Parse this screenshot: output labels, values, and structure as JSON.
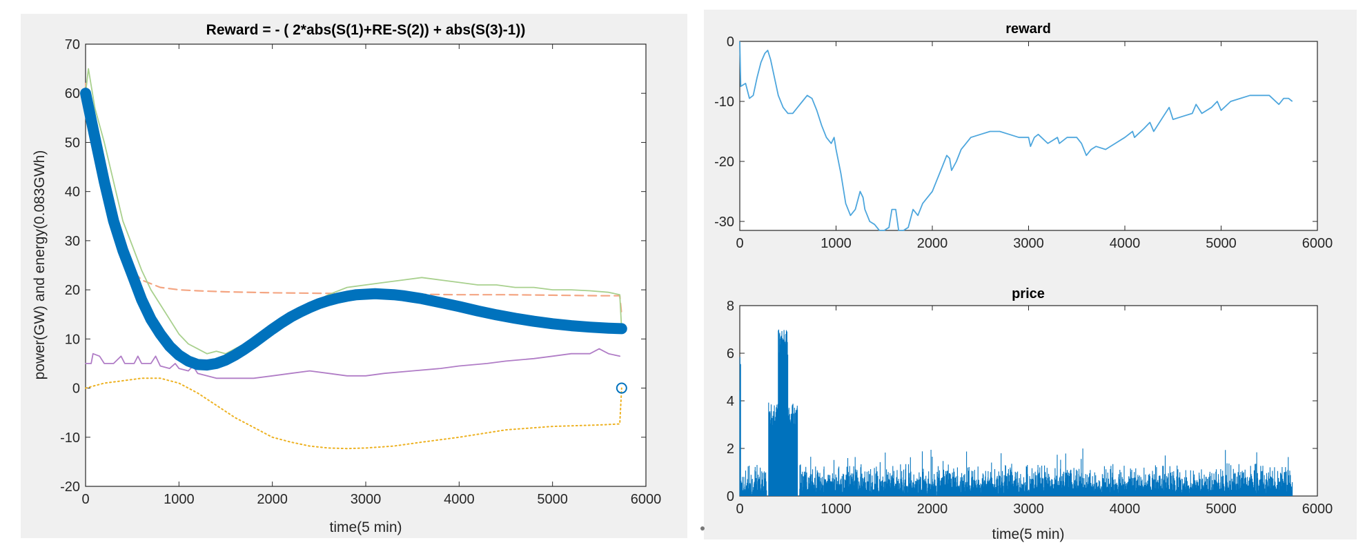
{
  "colors": {
    "background": "#f0f0f0",
    "axes": "#262626",
    "series_blue": "#0072BD",
    "series_blue_light": "#4DA6DD",
    "series_orange": "#F4A582",
    "series_yellow": "#EDB120",
    "series_purple": "#B07CC6",
    "series_green": "#A8D08D"
  },
  "chart_data": [
    {
      "type": "line",
      "title": "Reward = - ( 2*abs(S(1)+RE-S(2)) + abs(S(3)-1))",
      "xlabel": "time(5 min)",
      "ylabel": "power(GW) and energy(0.083GWh)",
      "xlim": [
        0,
        6000
      ],
      "ylim": [
        -20,
        70
      ],
      "xticks": [
        0,
        1000,
        2000,
        3000,
        4000,
        5000,
        6000
      ],
      "yticks": [
        -20,
        -10,
        0,
        10,
        20,
        30,
        40,
        50,
        60,
        70
      ],
      "grid": false,
      "series": [
        {
          "style": "dashed",
          "color": "#F4A582",
          "x": [
            0,
            100,
            200,
            300,
            400,
            500,
            600,
            800,
            1000,
            1200,
            1500,
            2000,
            2500,
            3000,
            3500,
            4000,
            4500,
            5000,
            5500,
            5720,
            5740
          ],
          "y": [
            62,
            50,
            40,
            32,
            27,
            24,
            22,
            20.5,
            20,
            19.8,
            19.6,
            19.4,
            19.3,
            19.2,
            19.1,
            19,
            19,
            18.9,
            18.8,
            18.8,
            15
          ]
        },
        {
          "style": "dotted",
          "color": "#EDB120",
          "x": [
            0,
            200,
            400,
            600,
            800,
            1000,
            1200,
            1400,
            1600,
            1800,
            2000,
            2200,
            2400,
            2600,
            2800,
            3000,
            3300,
            3600,
            4000,
            4500,
            5000,
            5500,
            5720,
            5740
          ],
          "y": [
            0,
            1,
            1.5,
            2,
            2,
            1,
            -1,
            -3.5,
            -6,
            -8,
            -10,
            -11,
            -11.8,
            -12.2,
            -12.3,
            -12.2,
            -11.8,
            -11,
            -10,
            -8.5,
            -7.8,
            -7.5,
            -7.3,
            0
          ]
        },
        {
          "style": "solid",
          "color": "#B07CC6",
          "x": [
            0,
            60,
            80,
            150,
            200,
            300,
            380,
            420,
            520,
            560,
            600,
            700,
            750,
            800,
            900,
            960,
            1000,
            1100,
            1150,
            1200,
            1300,
            1400,
            1600,
            1800,
            2000,
            2200,
            2400,
            2600,
            2800,
            3000,
            3200,
            3500,
            3800,
            4000,
            4300,
            4500,
            4800,
            5000,
            5200,
            5400,
            5500,
            5600,
            5720
          ],
          "y": [
            5,
            5,
            7,
            6.5,
            5,
            5,
            6.5,
            5,
            5,
            6.5,
            5,
            5,
            6.5,
            4.5,
            4,
            5,
            4,
            3.5,
            4.5,
            3,
            2.5,
            2,
            2,
            2,
            2.5,
            3,
            3.5,
            3,
            2.5,
            2.5,
            3,
            3.5,
            4,
            4.5,
            5,
            5.5,
            6,
            6.5,
            7,
            7,
            8,
            7,
            6.5
          ]
        },
        {
          "style": "solid",
          "color": "#A8D08D",
          "x": [
            0,
            30,
            100,
            200,
            300,
            400,
            500,
            600,
            700,
            800,
            900,
            1000,
            1100,
            1200,
            1300,
            1400,
            1500,
            1600,
            1700,
            1800,
            1900,
            2000,
            2100,
            2200,
            2300,
            2400,
            2600,
            2800,
            3000,
            3200,
            3400,
            3600,
            3800,
            4000,
            4200,
            4400,
            4600,
            4800,
            5000,
            5200,
            5400,
            5600,
            5720,
            5740
          ],
          "y": [
            60,
            65,
            57,
            50,
            42,
            34,
            29,
            24,
            20,
            17,
            14,
            11,
            9,
            8,
            7,
            7.5,
            7,
            8,
            9,
            10,
            11,
            12,
            13,
            14,
            15,
            17,
            19,
            20.5,
            21,
            21.5,
            22,
            22.5,
            22,
            21.5,
            21,
            21,
            20.5,
            20.5,
            20,
            20,
            19.8,
            19.5,
            19,
            12
          ]
        },
        {
          "style": "thick",
          "color": "#0072BD",
          "x": [
            0,
            100,
            200,
            300,
            400,
            500,
            600,
            700,
            800,
            900,
            1000,
            1100,
            1200,
            1300,
            1400,
            1500,
            1600,
            1700,
            1800,
            1900,
            2000,
            2100,
            2200,
            2300,
            2400,
            2500,
            2600,
            2700,
            2800,
            2900,
            3000,
            3100,
            3200,
            3300,
            3400,
            3500,
            3600,
            3800,
            4000,
            4200,
            4400,
            4600,
            4800,
            5000,
            5200,
            5400,
            5600,
            5740
          ],
          "y": [
            60,
            51,
            42,
            34,
            28,
            23,
            18,
            14,
            11,
            8.5,
            6.7,
            5.5,
            4.8,
            4.7,
            5,
            5.7,
            6.7,
            7.9,
            9.2,
            10.6,
            12,
            13.3,
            14.5,
            15.5,
            16.4,
            17.2,
            17.8,
            18.3,
            18.7,
            19,
            19.1,
            19.2,
            19.1,
            19,
            18.8,
            18.5,
            18.2,
            17.4,
            16.6,
            15.7,
            14.9,
            14.2,
            13.6,
            13.1,
            12.7,
            12.4,
            12.2,
            12.1
          ]
        }
      ],
      "end_marker": {
        "x": 5740,
        "y": 0
      }
    },
    {
      "type": "line",
      "title": "reward",
      "xlabel": "",
      "ylabel": "",
      "xlim": [
        0,
        6000
      ],
      "ylim": [
        -31.5,
        0
      ],
      "xticks": [
        0,
        1000,
        2000,
        3000,
        4000,
        5000,
        6000
      ],
      "yticks": [
        -30,
        -20,
        -10,
        0
      ],
      "grid": false,
      "series": [
        {
          "color": "#4DA6DD",
          "x": [
            0,
            10,
            60,
            100,
            140,
            180,
            220,
            260,
            290,
            320,
            360,
            400,
            450,
            500,
            550,
            600,
            650,
            700,
            750,
            800,
            850,
            900,
            950,
            980,
            1000,
            1050,
            1100,
            1150,
            1200,
            1250,
            1280,
            1300,
            1350,
            1400,
            1450,
            1500,
            1550,
            1580,
            1620,
            1650,
            1700,
            1750,
            1800,
            1850,
            1900,
            1950,
            2000,
            2050,
            2100,
            2150,
            2180,
            2200,
            2250,
            2300,
            2400,
            2500,
            2600,
            2700,
            2800,
            2900,
            3000,
            3020,
            3060,
            3100,
            3200,
            3300,
            3320,
            3400,
            3500,
            3550,
            3600,
            3650,
            3700,
            3800,
            3900,
            4000,
            4080,
            4100,
            4200,
            4260,
            4300,
            4400,
            4460,
            4500,
            4600,
            4700,
            4740,
            4800,
            4900,
            4960,
            5000,
            5100,
            5200,
            5300,
            5400,
            5500,
            5600,
            5650,
            5700,
            5740
          ],
          "y": [
            0,
            -7.5,
            -7,
            -9.5,
            -9,
            -6,
            -3.5,
            -2,
            -1.5,
            -3,
            -6,
            -9,
            -11,
            -12,
            -12,
            -11,
            -10,
            -9,
            -9.5,
            -11.5,
            -14,
            -16,
            -17,
            -16,
            -18,
            -22,
            -27,
            -29,
            -28,
            -25,
            -26,
            -28,
            -30,
            -30.5,
            -31.5,
            -31.5,
            -31,
            -28,
            -28,
            -31.5,
            -31.5,
            -31,
            -28,
            -29,
            -27,
            -26,
            -25,
            -23,
            -21,
            -19,
            -19.5,
            -21.5,
            -20,
            -18,
            -16,
            -15.5,
            -15,
            -15,
            -15.5,
            -16,
            -16,
            -17.5,
            -16,
            -15.5,
            -17,
            -16,
            -17,
            -16,
            -16,
            -17,
            -19,
            -18,
            -17.5,
            -18,
            -17,
            -16,
            -15,
            -16,
            -14.5,
            -13.5,
            -15,
            -12.5,
            -11,
            -13,
            -12.5,
            -12,
            -10.5,
            -12,
            -11,
            -10,
            -11.5,
            -10,
            -9.5,
            -9,
            -9,
            -9,
            -10.5,
            -9.5,
            -9.5,
            -10
          ]
        }
      ]
    },
    {
      "type": "line",
      "title": "price",
      "xlabel": "time(5 min)",
      "ylabel": "",
      "xlim": [
        0,
        6000
      ],
      "ylim": [
        0,
        8
      ],
      "xticks": [
        0,
        1000,
        2000,
        3000,
        4000,
        5000,
        6000
      ],
      "yticks": [
        0,
        2,
        4,
        6,
        8
      ],
      "grid": false,
      "series": [
        {
          "color": "#0072BD",
          "x_range": [
            0,
            5740
          ],
          "segments": [
            {
              "x": [
                0,
                10
              ],
              "level": 5.2,
              "spread": 1.5
            },
            {
              "x": [
                10,
                280
              ],
              "level": 0.5,
              "spread": 1.0
            },
            {
              "x": [
                280,
                300
              ],
              "level": 0.0,
              "spread": 0.2
            },
            {
              "x": [
                300,
                400
              ],
              "level": 3.4,
              "spread": 1.2
            },
            {
              "x": [
                400,
                500
              ],
              "level": 6.3,
              "spread": 1.4
            },
            {
              "x": [
                500,
                600
              ],
              "level": 3.3,
              "spread": 1.2
            },
            {
              "x": [
                600,
                620
              ],
              "level": 0.0,
              "spread": 0.2
            },
            {
              "x": [
                620,
                5740
              ],
              "level": 0.5,
              "spread": 1.1
            }
          ],
          "occasional_peak_max": 2.0
        }
      ]
    }
  ]
}
